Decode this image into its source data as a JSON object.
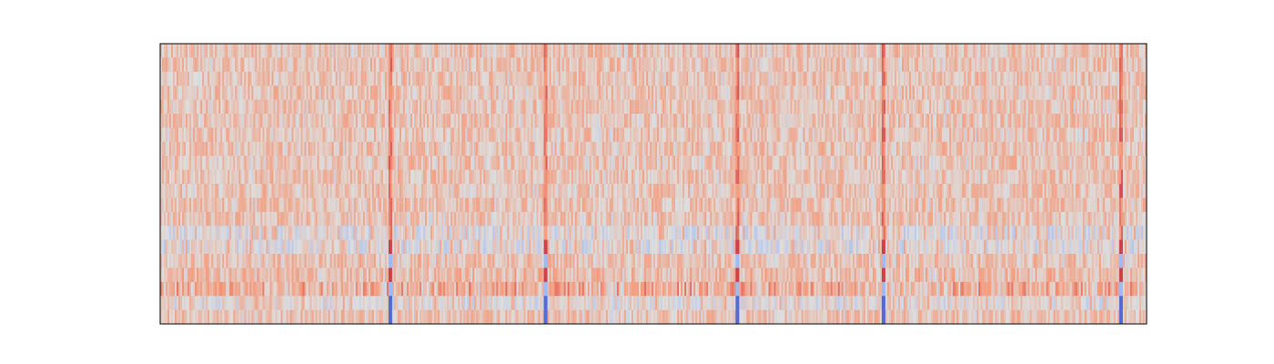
{
  "chart_data": {
    "type": "heatmap",
    "title": "",
    "xlabel": "",
    "ylabel": "",
    "axes_visible": false,
    "colormap": "coolwarm",
    "value_range": [
      -1,
      1
    ],
    "grid": false,
    "n_columns": 540,
    "n_rows": 20,
    "colors": {
      "low": "#3b4cc0",
      "mid": "#dddddd",
      "high": "#b40426",
      "frame": "#000000",
      "background": "#ffffff"
    },
    "boundary_columns": [
      125,
      210,
      315,
      395,
      525
    ],
    "notes_visible": []
  }
}
